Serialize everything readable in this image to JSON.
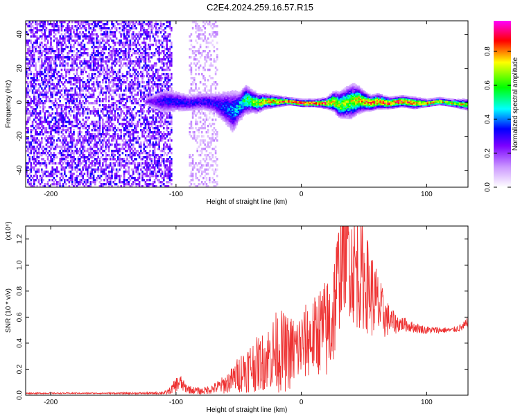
{
  "title": "C2E4.2024.259.16.57.R15",
  "chart_data": [
    {
      "type": "heatmap",
      "xlabel": "Height of straight line (km)",
      "ylabel": "Frequency (Hz)",
      "xlim": [
        -220,
        133
      ],
      "ylim": [
        -50,
        48
      ],
      "xticks": [
        -200,
        -100,
        0,
        100
      ],
      "yticks": [
        -40,
        -20,
        0,
        20,
        40
      ],
      "colorbar": {
        "label": "Normalized spectral amplitude",
        "range": [
          0,
          0.98
        ],
        "ticks": [
          "0.0",
          "0.2",
          "0.4",
          "0.6",
          "0.8"
        ],
        "colormap": [
          "#ffffff",
          "#cc99ff",
          "#7b00ff",
          "#0000ff",
          "#00ffff",
          "#00ff00",
          "#ffff00",
          "#ff0000",
          "#ff00ff"
        ]
      },
      "band_profile": {
        "x": [
          -125,
          -110,
          -100,
          -90,
          -80,
          -70,
          -60,
          -55,
          -50,
          -45,
          -40,
          -35,
          -30,
          -20,
          -10,
          0,
          10,
          20,
          25,
          30,
          35,
          40,
          45,
          50,
          55,
          60,
          70,
          80,
          90,
          100,
          110,
          120,
          133
        ],
        "center_hz": [
          1,
          1,
          1,
          0,
          1,
          0,
          -3,
          -5,
          -2,
          2,
          1,
          0,
          1,
          1,
          1,
          0,
          0,
          0,
          1,
          -1,
          0,
          1,
          2,
          1,
          0,
          1,
          0,
          1,
          0,
          0,
          1,
          0,
          -1
        ],
        "halfwidth_hz": [
          2,
          7,
          6,
          5,
          5,
          6,
          10,
          12,
          8,
          8,
          6,
          5,
          4,
          3,
          2,
          2,
          2,
          3,
          5,
          7,
          8,
          9,
          7,
          5,
          4,
          4,
          3,
          3,
          3,
          2,
          2,
          2,
          3
        ],
        "peak_amp": [
          0.25,
          0.35,
          0.35,
          0.35,
          0.35,
          0.35,
          0.4,
          0.45,
          0.5,
          0.6,
          0.7,
          0.75,
          0.8,
          0.85,
          0.9,
          0.95,
          0.95,
          0.9,
          0.85,
          0.75,
          0.7,
          0.75,
          0.8,
          0.85,
          0.9,
          0.9,
          0.9,
          0.9,
          0.85,
          0.85,
          0.8,
          0.8,
          0.75
        ]
      },
      "noise_regions": [
        {
          "x": [
            -220,
            -104
          ],
          "amp": 0.35
        },
        {
          "x": [
            -90,
            -67
          ],
          "amp": 0.15
        }
      ]
    },
    {
      "type": "line",
      "xlabel": "Height of straight line (km)",
      "ylabel": "SNR (10 * v/v)",
      "y_multiplier": "(x10⁴)",
      "xlim": [
        -220,
        133
      ],
      "ylim": [
        0,
        1.3
      ],
      "xticks": [
        -200,
        -100,
        0,
        100
      ],
      "yticks": [
        0.0,
        0.2,
        0.4,
        0.6,
        0.8,
        1.0,
        1.2
      ],
      "series": [
        {
          "color": "#ee3333",
          "x": [
            -220,
            -160,
            -120,
            -108,
            -104,
            -100,
            -97,
            -93,
            -88,
            -80,
            -70,
            -62,
            -55,
            -48,
            -40,
            -32,
            -28,
            -22,
            -18,
            -12,
            -5,
            0,
            5,
            10,
            15,
            20,
            24,
            28,
            32,
            36,
            40,
            45,
            50,
            55,
            60,
            65,
            70,
            75,
            80,
            90,
            100,
            110,
            120,
            128,
            133
          ],
          "y": [
            0.015,
            0.015,
            0.015,
            0.02,
            0.04,
            0.08,
            0.1,
            0.06,
            0.04,
            0.03,
            0.05,
            0.08,
            0.12,
            0.18,
            0.22,
            0.25,
            0.28,
            0.32,
            0.35,
            0.32,
            0.34,
            0.38,
            0.42,
            0.45,
            0.5,
            0.5,
            0.55,
            0.8,
            1.05,
            1.2,
            1.0,
            0.95,
            0.9,
            0.8,
            0.7,
            0.62,
            0.58,
            0.55,
            0.55,
            0.52,
            0.5,
            0.5,
            0.5,
            0.52,
            0.55
          ],
          "envelope": [
            0.005,
            0.005,
            0.008,
            0.015,
            0.03,
            0.06,
            0.07,
            0.04,
            0.03,
            0.025,
            0.04,
            0.07,
            0.1,
            0.16,
            0.2,
            0.22,
            0.24,
            0.3,
            0.33,
            0.3,
            0.28,
            0.28,
            0.3,
            0.3,
            0.35,
            0.4,
            0.45,
            0.45,
            0.45,
            0.5,
            0.45,
            0.45,
            0.4,
            0.35,
            0.3,
            0.2,
            0.12,
            0.08,
            0.06,
            0.04,
            0.03,
            0.025,
            0.02,
            0.03,
            0.05
          ]
        }
      ]
    }
  ]
}
